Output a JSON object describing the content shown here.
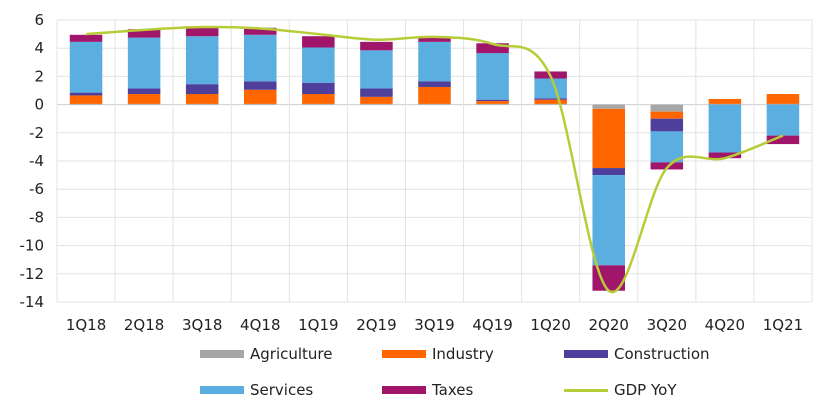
{
  "chart_data": {
    "type": "bar",
    "stacked": true,
    "categories": [
      "1Q18",
      "2Q18",
      "3Q18",
      "4Q18",
      "1Q19",
      "2Q19",
      "3Q19",
      "4Q19",
      "1Q20",
      "2Q20",
      "3Q20",
      "4Q20",
      "1Q21"
    ],
    "ylim": [
      -14,
      6
    ],
    "yticks": [
      6,
      4,
      2,
      0,
      -2,
      -4,
      -6,
      -8,
      -10,
      -12,
      -14
    ],
    "grid": true,
    "legend_position": "bottom",
    "series": [
      {
        "name": "Agriculture",
        "type": "bar",
        "color": "#a6a6a6",
        "values": [
          0.05,
          0.05,
          0.05,
          0.05,
          0.05,
          0.05,
          0.05,
          0.05,
          0.05,
          -0.3,
          -0.5,
          0.05,
          0.05
        ]
      },
      {
        "name": "Industry",
        "type": "bar",
        "color": "#ff6600",
        "values": [
          0.6,
          0.7,
          0.7,
          1.0,
          0.7,
          0.5,
          1.2,
          0.2,
          0.3,
          -4.2,
          -0.5,
          0.35,
          0.7
        ]
      },
      {
        "name": "Construction",
        "type": "bar",
        "color": "#4f3f9c",
        "values": [
          0.2,
          0.4,
          0.7,
          0.6,
          0.8,
          0.6,
          0.4,
          0.1,
          0.1,
          -0.5,
          -0.9,
          0.0,
          0.0
        ]
      },
      {
        "name": "Services",
        "type": "bar",
        "color": "#5aaee0",
        "values": [
          3.6,
          3.6,
          3.4,
          3.3,
          2.5,
          2.7,
          2.8,
          3.3,
          1.4,
          -6.4,
          -2.2,
          -3.4,
          -2.2
        ]
      },
      {
        "name": "Taxes",
        "type": "bar",
        "color": "#a0166b",
        "values": [
          0.5,
          0.6,
          0.7,
          0.5,
          0.8,
          0.6,
          0.3,
          0.7,
          0.5,
          -1.8,
          -0.5,
          -0.4,
          -0.6
        ]
      },
      {
        "name": "GDP YoY",
        "type": "line",
        "color": "#b8cc38",
        "values": [
          5.0,
          5.3,
          5.5,
          5.4,
          5.0,
          4.6,
          4.8,
          4.3,
          2.0,
          -13.2,
          -4.5,
          -3.8,
          -2.2
        ]
      }
    ]
  }
}
